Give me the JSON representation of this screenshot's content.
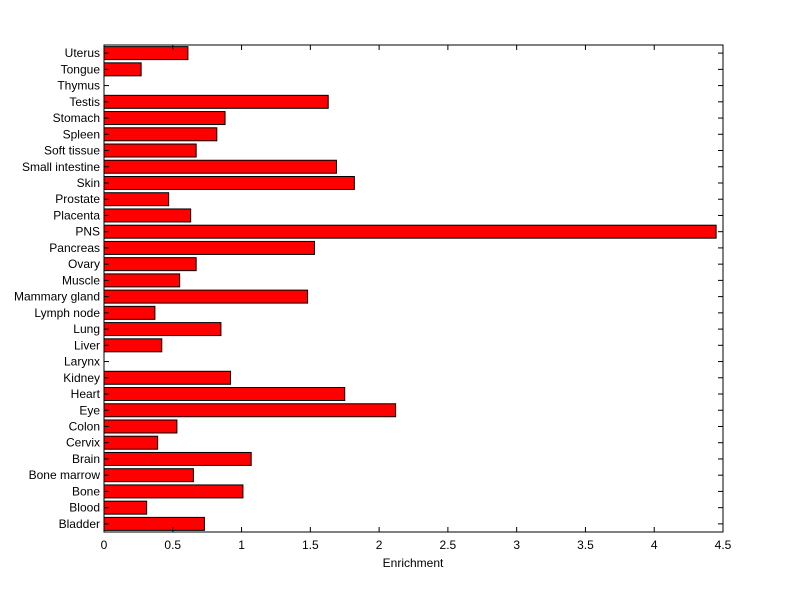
{
  "chart_data": {
    "type": "bar",
    "orientation": "horizontal",
    "title": "",
    "xlabel": "Enrichment",
    "ylabel": "",
    "xlim": [
      0,
      4.5
    ],
    "xticks": [
      "0",
      "0.5",
      "1",
      "1.5",
      "2",
      "2.5",
      "3",
      "3.5",
      "4",
      "4.5"
    ],
    "grid": false,
    "bar_color": "#ff0000",
    "bar_edge_color": "#000000",
    "categories": [
      "Bladder",
      "Blood",
      "Bone",
      "Bone marrow",
      "Brain",
      "Cervix",
      "Colon",
      "Eye",
      "Heart",
      "Kidney",
      "Larynx",
      "Liver",
      "Lung",
      "Lymph node",
      "Mammary gland",
      "Muscle",
      "Ovary",
      "Pancreas",
      "PNS",
      "Placenta",
      "Prostate",
      "Skin",
      "Small intestine",
      "Soft tissue",
      "Spleen",
      "Stomach",
      "Testis",
      "Thymus",
      "Tongue",
      "Uterus"
    ],
    "values": [
      0.73,
      0.31,
      1.01,
      0.65,
      1.07,
      0.39,
      0.53,
      2.12,
      1.75,
      0.92,
      0.0,
      0.42,
      0.85,
      0.37,
      1.48,
      0.55,
      0.67,
      1.53,
      4.45,
      0.63,
      0.47,
      1.82,
      1.69,
      0.67,
      0.82,
      0.88,
      1.63,
      0.0,
      0.27,
      0.61
    ]
  }
}
